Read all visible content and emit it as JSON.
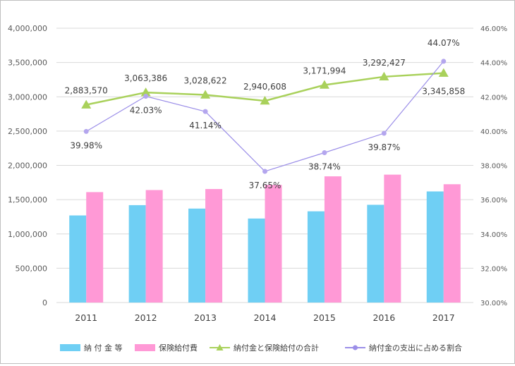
{
  "chart_data": {
    "type": "bar",
    "categories": [
      "2011",
      "2012",
      "2013",
      "2014",
      "2015",
      "2016",
      "2017"
    ],
    "y_left": {
      "ylim": [
        0,
        4000000
      ],
      "ticks": [
        0,
        500000,
        1000000,
        1500000,
        2000000,
        2500000,
        3000000,
        3500000,
        4000000
      ],
      "tick_labels": [
        "0",
        "500,000",
        "1,000,000",
        "1,500,000",
        "2,000,000",
        "2,500,000",
        "3,000,000",
        "3,500,000",
        "4,000,000"
      ]
    },
    "y_right": {
      "ylim": [
        30,
        46
      ],
      "ticks": [
        30,
        32,
        34,
        36,
        38,
        40,
        42,
        44,
        46
      ],
      "tick_labels": [
        "30.00%",
        "32.00%",
        "34.00%",
        "36.00%",
        "38.00%",
        "40.00%",
        "42.00%",
        "44.00%",
        "46.00%"
      ]
    },
    "grid": true,
    "legend_position": "bottom",
    "series": [
      {
        "name": "納 付 金 等",
        "type": "bar",
        "axis": "left",
        "color": "#6fcff4",
        "values": [
          1270000,
          1420000,
          1370000,
          1225000,
          1330000,
          1425000,
          1620000
        ]
      },
      {
        "name": "保険給付費",
        "type": "bar",
        "axis": "left",
        "color": "#ff99d6",
        "values": [
          1610000,
          1640000,
          1655000,
          1715000,
          1840000,
          1865000,
          1725000
        ]
      },
      {
        "name": "納付金と保険給付の合計",
        "type": "line",
        "axis": "left",
        "marker": "triangle",
        "color": "#a9d15b",
        "values": [
          2883570,
          3063386,
          3028622,
          2940608,
          3171994,
          3292427,
          3345858
        ],
        "labels": [
          "2,883,570",
          "3,063,386",
          "3,028,622",
          "2,940,608",
          "3,171,994",
          "3,292,427",
          "3,345,858"
        ]
      },
      {
        "name": "納付金の支出に占める割合",
        "type": "line",
        "axis": "right",
        "marker": "circle",
        "color": "#9b8ee8",
        "marker_color": "#b4a6ee",
        "values": [
          39.98,
          42.03,
          41.14,
          37.65,
          38.74,
          39.87,
          44.07
        ],
        "labels": [
          "39.98%",
          "42.03%",
          "41.14%",
          "37.65%",
          "38.74%",
          "39.87%",
          "44.07%"
        ]
      }
    ]
  }
}
